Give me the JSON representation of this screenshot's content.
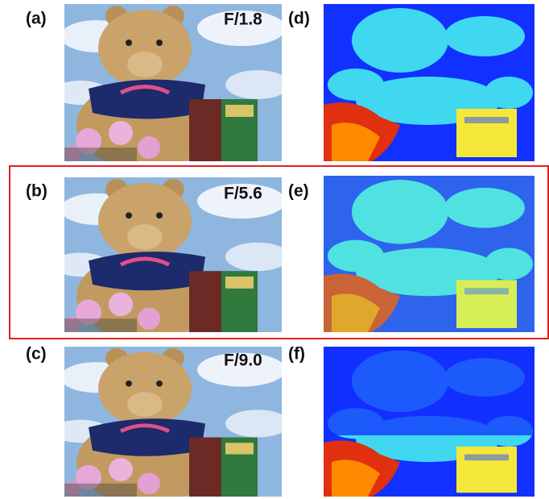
{
  "photos": [
    {
      "label": "(a)",
      "aperture": "F/1.8"
    },
    {
      "label": "(b)",
      "aperture": "F/5.6"
    },
    {
      "label": "(c)",
      "aperture": "F/9.0"
    }
  ],
  "maps": [
    {
      "label": "(d)"
    },
    {
      "label": "(e)"
    },
    {
      "label": "(f)"
    }
  ]
}
